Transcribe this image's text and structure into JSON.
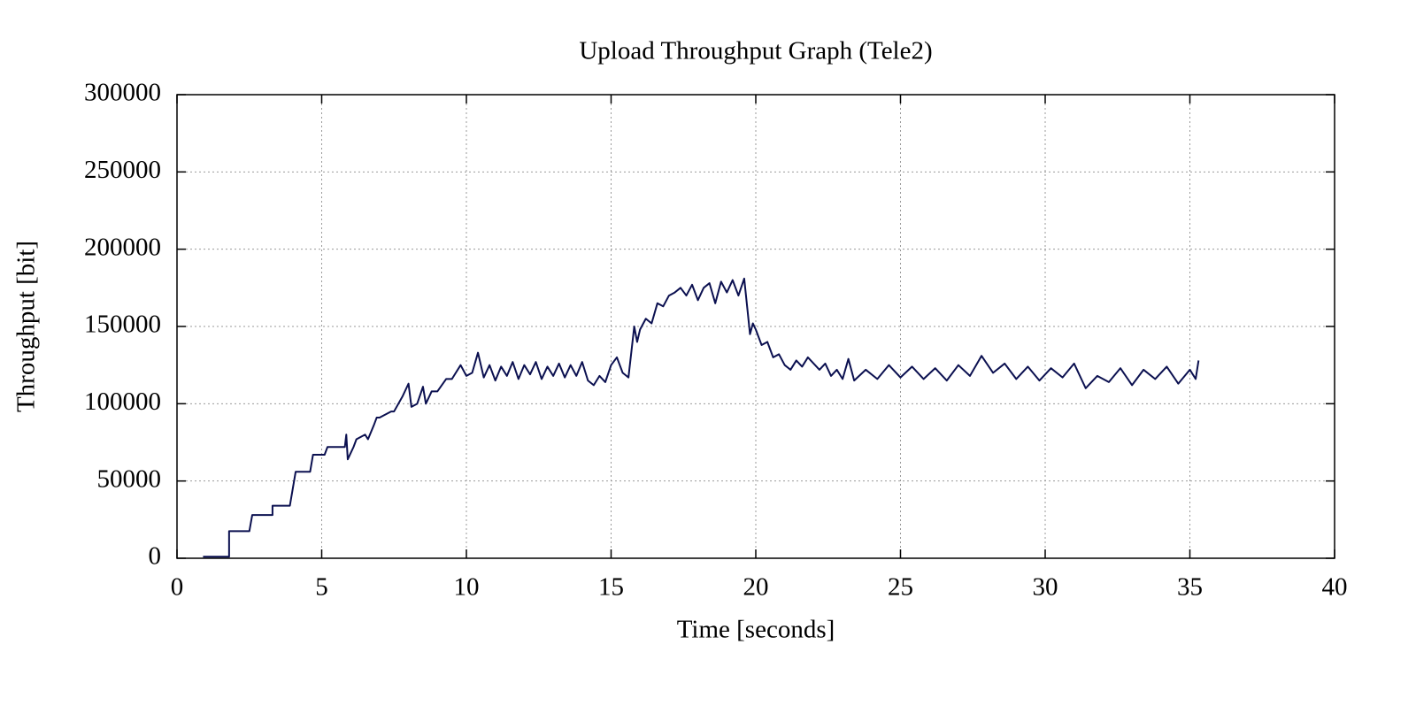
{
  "chart_data": {
    "type": "line",
    "title": "Upload Throughput Graph (Tele2)",
    "x_label": "Time [seconds]",
    "y_label": "Throughput [bit]",
    "color": "#0b1050",
    "grid": true,
    "xlim": [
      0,
      40
    ],
    "xticks": [
      0,
      5,
      10,
      15,
      20,
      25,
      30,
      35,
      40
    ],
    "ylim": [
      0,
      300000
    ],
    "yticks": [
      0,
      50000,
      100000,
      150000,
      200000,
      250000,
      300000
    ],
    "x": [
      0.9,
      1.8,
      1.8,
      2.5,
      2.6,
      3.3,
      3.3,
      3.9,
      4.0,
      4.1,
      4.6,
      4.7,
      5.1,
      5.2,
      5.8,
      5.85,
      5.9,
      6.1,
      6.2,
      6.5,
      6.6,
      6.8,
      6.9,
      7.0,
      7.4,
      7.5,
      7.8,
      8.0,
      8.1,
      8.3,
      8.5,
      8.6,
      8.8,
      9.0,
      9.3,
      9.5,
      9.8,
      10.0,
      10.2,
      10.4,
      10.6,
      10.8,
      11.0,
      11.2,
      11.4,
      11.6,
      11.8,
      12.0,
      12.2,
      12.4,
      12.6,
      12.8,
      13.0,
      13.2,
      13.4,
      13.6,
      13.8,
      14.0,
      14.2,
      14.4,
      14.6,
      14.8,
      15.0,
      15.2,
      15.4,
      15.6,
      15.8,
      15.9,
      16.0,
      16.2,
      16.4,
      16.6,
      16.8,
      17.0,
      17.2,
      17.4,
      17.6,
      17.8,
      18.0,
      18.2,
      18.4,
      18.6,
      18.8,
      19.0,
      19.2,
      19.4,
      19.6,
      19.8,
      19.9,
      20.0,
      20.2,
      20.4,
      20.6,
      20.8,
      21.0,
      21.2,
      21.4,
      21.6,
      21.8,
      22.0,
      22.2,
      22.4,
      22.6,
      22.8,
      23.0,
      23.2,
      23.4,
      23.8,
      24.2,
      24.6,
      25.0,
      25.4,
      25.8,
      26.2,
      26.6,
      27.0,
      27.4,
      27.8,
      28.2,
      28.6,
      29.0,
      29.4,
      29.8,
      30.2,
      30.6,
      31.0,
      31.4,
      31.8,
      32.2,
      32.6,
      33.0,
      33.4,
      33.8,
      34.2,
      34.6,
      35.0,
      35.2,
      35.3
    ],
    "values": [
      1000,
      1000,
      17500,
      17500,
      28000,
      28000,
      34000,
      34000,
      45000,
      56000,
      56000,
      67000,
      67000,
      72000,
      72000,
      80000,
      64000,
      72000,
      77000,
      80000,
      77000,
      86000,
      91000,
      91000,
      95000,
      95000,
      105000,
      113000,
      98000,
      100000,
      111000,
      100000,
      108000,
      108000,
      116000,
      116000,
      125000,
      118000,
      120000,
      133000,
      117000,
      125000,
      115000,
      124000,
      118000,
      127000,
      116000,
      125000,
      119000,
      127000,
      116000,
      124000,
      118000,
      126000,
      117000,
      125000,
      118000,
      127000,
      115000,
      112000,
      118000,
      114000,
      125000,
      130000,
      120000,
      117000,
      150000,
      140000,
      148000,
      155000,
      152000,
      165000,
      163000,
      170000,
      172000,
      175000,
      170000,
      177000,
      167000,
      175000,
      178000,
      165000,
      179000,
      172000,
      180000,
      170000,
      181000,
      145000,
      152000,
      148000,
      138000,
      140000,
      130000,
      132000,
      125000,
      122000,
      128000,
      124000,
      130000,
      126000,
      122000,
      126000,
      118000,
      122000,
      116000,
      129000,
      115000,
      122000,
      116000,
      125000,
      117000,
      124000,
      116000,
      123000,
      115000,
      125000,
      118000,
      131000,
      120000,
      126000,
      116000,
      124000,
      115000,
      123000,
      117000,
      126000,
      110000,
      118000,
      114000,
      123000,
      112000,
      122000,
      116000,
      124000,
      113000,
      122000,
      116000,
      128000
    ]
  }
}
